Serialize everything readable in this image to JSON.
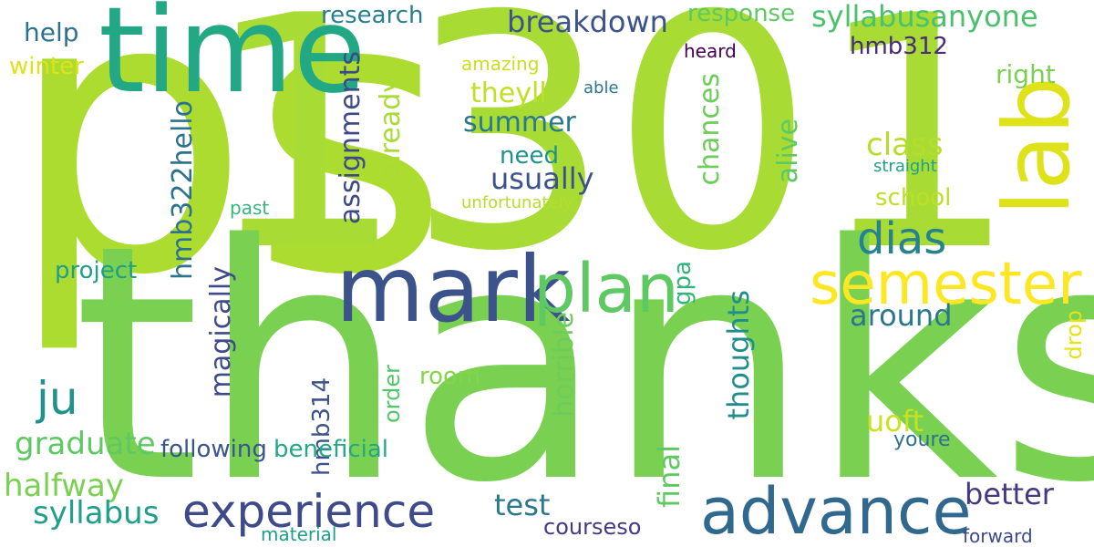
{
  "word_cloud": {
    "background": "#ffffff",
    "words": [
      {
        "text": "ps",
        "color": "#addc30"
      },
      {
        "text": "1301",
        "color": "#a8db34"
      },
      {
        "text": "thanks",
        "color": "#7ad151"
      },
      {
        "text": "time",
        "color": "#22a884"
      },
      {
        "text": "lab",
        "color": "#dde318"
      },
      {
        "text": "mark",
        "color": "#3b528b"
      },
      {
        "text": "plan",
        "color": "#5ec962"
      },
      {
        "text": "semester",
        "color": "#fde725"
      },
      {
        "text": "advance",
        "color": "#31688e"
      },
      {
        "text": "experience",
        "color": "#3e4a89"
      },
      {
        "text": "dias",
        "color": "#26828e"
      },
      {
        "text": "ju",
        "color": "#21918c"
      },
      {
        "text": "research",
        "color": "#277f8e"
      },
      {
        "text": "breakdown",
        "color": "#3b528b"
      },
      {
        "text": "response",
        "color": "#5ec962"
      },
      {
        "text": "syllabusanyone",
        "color": "#4ac16d"
      },
      {
        "text": "help",
        "color": "#2c728e"
      },
      {
        "text": "winter",
        "color": "#dde318"
      },
      {
        "text": "amazing",
        "color": "#c8e020"
      },
      {
        "text": "heard",
        "color": "#440154"
      },
      {
        "text": "hmb312",
        "color": "#472c7a"
      },
      {
        "text": "right",
        "color": "#7ad151"
      },
      {
        "text": "able",
        "color": "#2a788e"
      },
      {
        "text": "theyll",
        "color": "#c0df25"
      },
      {
        "text": "summer",
        "color": "#2a788e"
      },
      {
        "text": "usually",
        "color": "#3b528b"
      },
      {
        "text": "need",
        "color": "#21918c"
      },
      {
        "text": "class",
        "color": "#b5de2b"
      },
      {
        "text": "straight",
        "color": "#1fa188"
      },
      {
        "text": "school",
        "color": "#bddf26"
      },
      {
        "text": "unfortunately",
        "color": "#b5de2b"
      },
      {
        "text": "past",
        "color": "#35b779"
      },
      {
        "text": "project",
        "color": "#1f9e89"
      },
      {
        "text": "around",
        "color": "#2a788e"
      },
      {
        "text": "assignments",
        "color": "#3e4989"
      },
      {
        "text": "already",
        "color": "#a8db34"
      },
      {
        "text": "chances",
        "color": "#6ccd5a"
      },
      {
        "text": "alive",
        "color": "#5ec962"
      },
      {
        "text": "gpa",
        "color": "#2fb47c"
      },
      {
        "text": "hmb322hello",
        "color": "#2c728e"
      },
      {
        "text": "magically",
        "color": "#3e4a89"
      },
      {
        "text": "thoughts",
        "color": "#228d8d"
      },
      {
        "text": "horrible",
        "color": "#6ccd5a"
      },
      {
        "text": "hmb314",
        "color": "#3b528b"
      },
      {
        "text": "order",
        "color": "#52c569"
      },
      {
        "text": "drop",
        "color": "#e2e418"
      },
      {
        "text": "final",
        "color": "#5ec962"
      },
      {
        "text": "room",
        "color": "#86d549"
      },
      {
        "text": "uoft",
        "color": "#cae11f"
      },
      {
        "text": "graduate",
        "color": "#5ec962"
      },
      {
        "text": "following",
        "color": "#39568c"
      },
      {
        "text": "beneficial",
        "color": "#22a884"
      },
      {
        "text": "youre",
        "color": "#2c728e"
      },
      {
        "text": "halfway",
        "color": "#7ad151"
      },
      {
        "text": "syllabus",
        "color": "#1f9e89"
      },
      {
        "text": "test",
        "color": "#2a788e"
      },
      {
        "text": "better",
        "color": "#453781"
      },
      {
        "text": "courseso",
        "color": "#443983"
      },
      {
        "text": "material",
        "color": "#1f9e89"
      },
      {
        "text": "forward",
        "color": "#3e4a89"
      }
    ]
  }
}
